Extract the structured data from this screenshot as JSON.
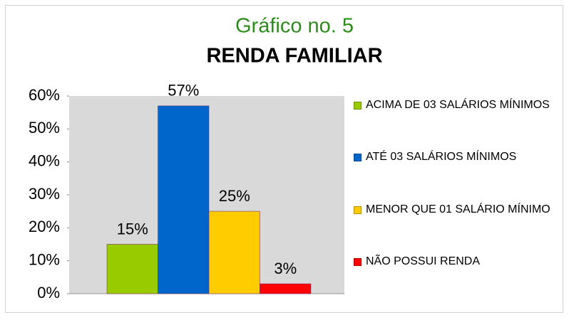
{
  "chart_data": {
    "type": "bar",
    "title": "Gráfico no. 5",
    "subtitle": "RENDA FAMILIAR",
    "series": [
      {
        "name": "ACIMA DE 03 SALÁRIOS MÍNIMOS",
        "color": "#99cc00",
        "values": [
          15
        ],
        "value_labels": [
          "15%"
        ]
      },
      {
        "name": "ATÉ 03 SALÁRIOS MÍNIMOS",
        "color": "#0066cc",
        "values": [
          57
        ],
        "value_labels": [
          "57%"
        ]
      },
      {
        "name": "MENOR QUE 01 SALÁRIO MÍNIMO",
        "color": "#ffcc00",
        "values": [
          25
        ],
        "value_labels": [
          "25%"
        ]
      },
      {
        "name": "NÃO POSSUI RENDA",
        "color": "#ff0000",
        "values": [
          3
        ],
        "value_labels": [
          "3%"
        ]
      }
    ],
    "ylim": [
      0,
      60
    ],
    "yticks": [
      {
        "value": 0,
        "label": "0%"
      },
      {
        "value": 10,
        "label": "10%"
      },
      {
        "value": 20,
        "label": "20%"
      },
      {
        "value": 30,
        "label": "30%"
      },
      {
        "value": 40,
        "label": "40%"
      },
      {
        "value": 50,
        "label": "50%"
      },
      {
        "value": 60,
        "label": "60%"
      }
    ],
    "grid": false,
    "legend": "right"
  }
}
